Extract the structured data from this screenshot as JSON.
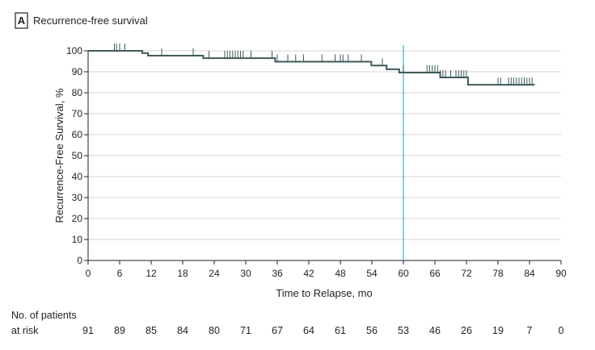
{
  "panel": {
    "letter": "A",
    "title": "Recurrence-free survival"
  },
  "chart_data": {
    "type": "line",
    "subtype": "kaplan-meier",
    "xlabel": "Time to Relapse, mo",
    "ylabel": "Recurrence-Free Survival, %",
    "xlim": [
      0,
      90
    ],
    "ylim": [
      0,
      100
    ],
    "xticks": [
      0,
      6,
      12,
      18,
      24,
      30,
      36,
      42,
      48,
      54,
      60,
      66,
      72,
      78,
      84,
      90
    ],
    "yticks": [
      0,
      10,
      20,
      30,
      40,
      50,
      60,
      70,
      80,
      90,
      100
    ],
    "grid": "horizontal",
    "reference_line": {
      "x": 60,
      "color": "#4fb3dd"
    },
    "line_color": "#3f5a5a",
    "series": [
      {
        "steps": [
          {
            "x": 0,
            "y": 100
          },
          {
            "x": 10.3,
            "y": 98.9
          },
          {
            "x": 11.4,
            "y": 97.7
          },
          {
            "x": 21.9,
            "y": 96.5
          },
          {
            "x": 35.6,
            "y": 94.8
          },
          {
            "x": 53.9,
            "y": 93.0
          },
          {
            "x": 56.8,
            "y": 91.2
          },
          {
            "x": 59.2,
            "y": 89.6
          },
          {
            "x": 67.0,
            "y": 89.6
          },
          {
            "x": 67.0,
            "y": 87.3
          },
          {
            "x": 72.3,
            "y": 83.8
          },
          {
            "x": 85.0,
            "y": 83.8
          }
        ],
        "censored": [
          5,
          5.4,
          6,
          7,
          14,
          20,
          23,
          26,
          26.5,
          27,
          27.5,
          28,
          28.5,
          29,
          29.5,
          31,
          35,
          36,
          38,
          39.5,
          41,
          44.5,
          47,
          48,
          48.5,
          49.5,
          52,
          56,
          60,
          64.5,
          65,
          65.5,
          66,
          66.5,
          67,
          67.5,
          68,
          69,
          70,
          70.5,
          71,
          71.5,
          72,
          78,
          78.5,
          80,
          80.5,
          81,
          81.5,
          82,
          82.5,
          83,
          83.5,
          84,
          84.5
        ]
      }
    ]
  },
  "risk_table": {
    "label_line1": "No. of patients",
    "label_line2": "at risk",
    "counts": [
      "91",
      "89",
      "85",
      "84",
      "80",
      "71",
      "67",
      "64",
      "61",
      "56",
      "53",
      "46",
      "26",
      "19",
      "7",
      "0"
    ]
  }
}
